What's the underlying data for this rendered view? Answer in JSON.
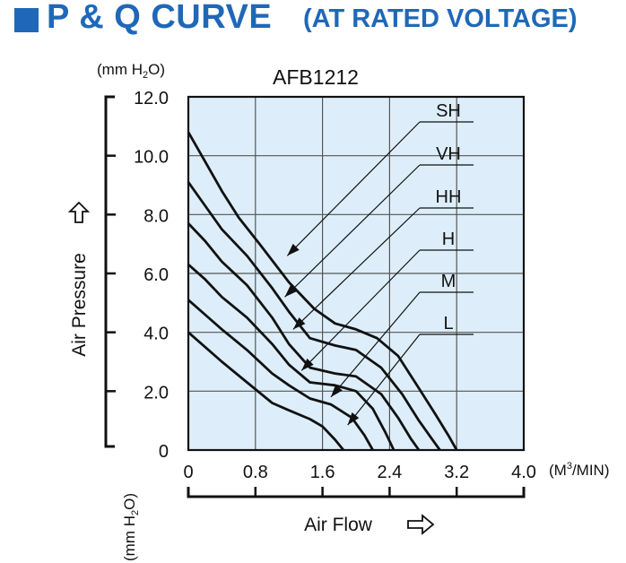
{
  "header": {
    "title": "P & Q CURVE",
    "subtitle": "(AT RATED VOLTAGE)",
    "accent_color": "#1f68b8"
  },
  "chart_data": {
    "type": "line",
    "title": "AFB1212",
    "ylabel": "Air Pressure",
    "yunit": "(mm H2O)",
    "yunit_lower": "(mm H2O)",
    "xlabel": "Air Flow",
    "xunit": "(M3/MIN)",
    "xlim": [
      0,
      4.0
    ],
    "ylim": [
      0,
      12.0
    ],
    "x_ticks": [
      "0",
      "0.8",
      "1.6",
      "2.4",
      "3.2",
      "4.0"
    ],
    "y_ticks": [
      "0",
      "2.0",
      "4.0",
      "6.0",
      "8.0",
      "10.0",
      "12.0"
    ],
    "grid": true,
    "plot_background": "#ddeefa",
    "series": [
      {
        "name": "SH",
        "x": [
          0,
          0.2,
          0.4,
          0.6,
          0.85,
          1.2,
          1.5,
          1.75,
          2.0,
          2.25,
          2.5,
          2.75,
          2.95,
          3.1,
          3.2
        ],
        "y": [
          10.8,
          9.8,
          8.8,
          7.9,
          7.0,
          5.7,
          4.8,
          4.3,
          4.1,
          3.8,
          3.2,
          2.1,
          1.2,
          0.5,
          0.0
        ]
      },
      {
        "name": "VH",
        "x": [
          0,
          0.2,
          0.4,
          0.7,
          1.0,
          1.2,
          1.45,
          1.75,
          2.0,
          2.3,
          2.55,
          2.75,
          2.9,
          3.0
        ],
        "y": [
          9.1,
          8.3,
          7.5,
          6.6,
          5.5,
          4.7,
          3.8,
          3.55,
          3.4,
          2.8,
          1.9,
          1.0,
          0.4,
          0.0
        ]
      },
      {
        "name": "HH",
        "x": [
          0,
          0.2,
          0.4,
          0.7,
          1.0,
          1.2,
          1.45,
          1.75,
          2.0,
          2.3,
          2.5,
          2.65,
          2.75
        ],
        "y": [
          7.7,
          7.1,
          6.4,
          5.6,
          4.5,
          3.6,
          2.8,
          2.6,
          2.5,
          1.9,
          1.1,
          0.4,
          0.0
        ]
      },
      {
        "name": "H",
        "x": [
          0,
          0.2,
          0.4,
          0.7,
          1.0,
          1.2,
          1.45,
          1.75,
          2.0,
          2.2,
          2.35,
          2.45
        ],
        "y": [
          6.3,
          5.8,
          5.2,
          4.5,
          3.6,
          2.9,
          2.3,
          2.2,
          2.0,
          1.4,
          0.6,
          0.0
        ]
      },
      {
        "name": "M",
        "x": [
          0,
          0.2,
          0.4,
          0.7,
          1.0,
          1.2,
          1.45,
          1.7,
          1.95,
          2.1,
          2.2
        ],
        "y": [
          5.1,
          4.6,
          4.1,
          3.4,
          2.6,
          2.2,
          1.75,
          1.55,
          1.1,
          0.5,
          0.0
        ]
      },
      {
        "name": "L",
        "x": [
          0,
          0.2,
          0.4,
          0.7,
          1.0,
          1.2,
          1.45,
          1.6,
          1.75,
          1.85
        ],
        "y": [
          4.0,
          3.5,
          3.0,
          2.3,
          1.6,
          1.35,
          1.05,
          0.8,
          0.35,
          0.0
        ]
      }
    ],
    "labels": [
      {
        "series": "SH",
        "text": "SH",
        "arrow_x": 1.18,
        "arrow_y": 6.6
      },
      {
        "series": "VH",
        "text": "VH",
        "arrow_x": 1.15,
        "arrow_y": 5.2
      },
      {
        "series": "HH",
        "text": "HH",
        "arrow_x": 1.25,
        "arrow_y": 4.1
      },
      {
        "series": "H",
        "text": "H",
        "arrow_x": 1.35,
        "arrow_y": 2.7
      },
      {
        "series": "M",
        "text": "M",
        "arrow_x": 1.7,
        "arrow_y": 1.8
      },
      {
        "series": "L",
        "text": "L",
        "arrow_x": 1.9,
        "arrow_y": 0.85
      }
    ]
  }
}
